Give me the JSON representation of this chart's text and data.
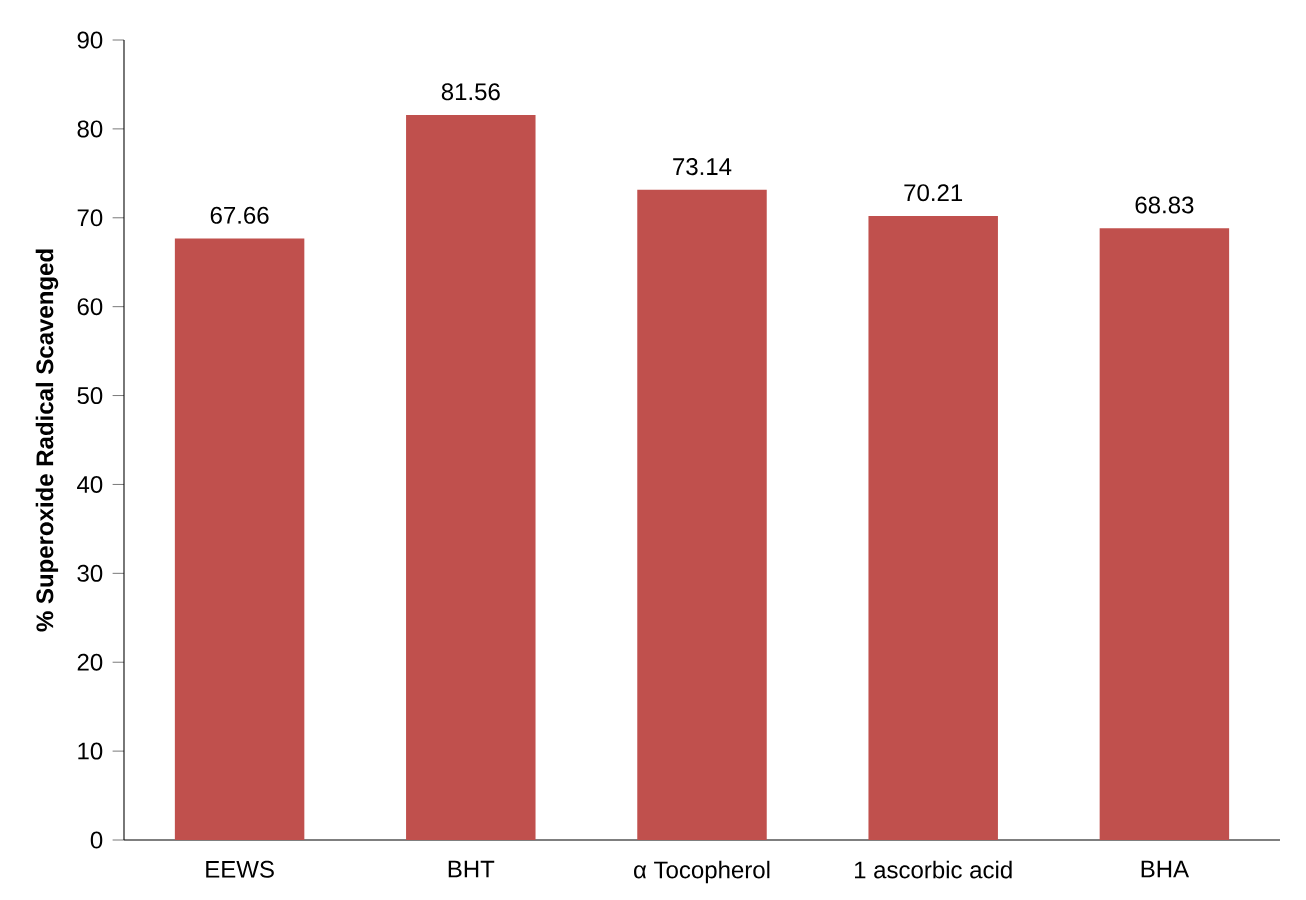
{
  "chart_data": {
    "type": "bar",
    "ylabel": "% Superoxide Radical Scavenged",
    "categories": [
      "EEWS",
      "BHT",
      "α Tocopherol",
      "1 ascorbic acid",
      "BHA"
    ],
    "values": [
      67.66,
      81.56,
      73.14,
      70.21,
      68.83
    ],
    "color": "#c0504d",
    "ylim": [
      0,
      90
    ],
    "yticks": [
      0,
      10,
      20,
      30,
      40,
      50,
      60,
      70,
      80,
      90
    ],
    "data_labels": true,
    "grid": false
  }
}
